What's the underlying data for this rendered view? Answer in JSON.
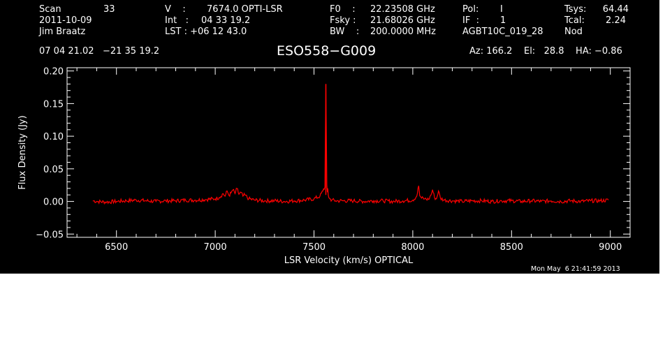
{
  "header": {
    "col1": [
      "Scan",
      "33",
      "2011-10-09",
      "Jim Braatz"
    ],
    "col2": [
      "V    :",
      "7674.0 OPTI-LSR",
      "Int   :",
      "04 33 19.2",
      "LST : +06 12 43.0"
    ],
    "col3": [
      "F0    :",
      "22.23508 GHz",
      "Fsky :",
      "21.68026 GHz",
      "BW    :",
      "200.0000 MHz"
    ],
    "col4": [
      "Pol:",
      "I",
      "IF  :",
      "1",
      "AGBT10C_019_28"
    ],
    "col5": [
      "Tsys:",
      "64.44",
      "Tcal:",
      "2.24",
      "Nod"
    ],
    "coords": "07 04 21.02   −21 35 19.2",
    "source": "ESO558−G009",
    "az_el_ha": "Az: 166.2    El:   28.8    HA: −0.86",
    "timestamp": "Mon May  6 21:41:59 2013"
  },
  "colors": {
    "background": "#000000",
    "axes": "#ffffff",
    "spectrum": "#ff0000"
  },
  "chart_data": {
    "type": "line",
    "title": "ESO558−G009",
    "xlabel": "LSR Velocity (km/s) OPTICAL",
    "ylabel": "Flux Density (Jy)",
    "xlim": [
      6250,
      9100
    ],
    "ylim": [
      -0.055,
      0.205
    ],
    "xticks": [
      6500,
      7000,
      7500,
      8000,
      8500,
      9000
    ],
    "xtick_labels": [
      "6500",
      "7000",
      "7500",
      "8000",
      "8500",
      "9000"
    ],
    "yticks": [
      -0.05,
      0.0,
      0.05,
      0.1,
      0.15,
      0.2
    ],
    "ytick_labels": [
      "−0.05",
      "0.00",
      "0.05",
      "0.10",
      "0.15",
      "0.20"
    ],
    "grid": false,
    "series": [
      {
        "x": [
          6380,
          6400,
          6450,
          6500,
          6550,
          6600,
          6650,
          6700,
          6750,
          6800,
          6850,
          6900,
          6950,
          7000,
          7020,
          7040,
          7050,
          7060,
          7070,
          7080,
          7090,
          7100,
          7110,
          7120,
          7130,
          7140,
          7150,
          7170,
          7200,
          7250,
          7300,
          7350,
          7400,
          7450,
          7500,
          7530,
          7545,
          7555,
          7560,
          7565,
          7568,
          7570,
          7572,
          7575,
          7580,
          7590,
          7610,
          7650,
          7700,
          7750,
          7800,
          7850,
          7900,
          7950,
          8000,
          8020,
          8030,
          8035,
          8045,
          8060,
          8080,
          8095,
          8100,
          8110,
          8120,
          8130,
          8140,
          8160,
          8200,
          8250,
          8300,
          8350,
          8400,
          8450,
          8500,
          8550,
          8600,
          8650,
          8700,
          8750,
          8800,
          8850,
          8900,
          8950,
          8990
        ],
        "y": [
          0.001,
          0.0,
          -0.001,
          0.0,
          0.001,
          0.002,
          0.001,
          0.0,
          0.001,
          0.001,
          0.002,
          0.002,
          0.003,
          0.004,
          0.006,
          0.012,
          0.008,
          0.016,
          0.009,
          0.013,
          0.018,
          0.012,
          0.02,
          0.011,
          0.014,
          0.008,
          0.01,
          0.004,
          0.002,
          0.001,
          0.001,
          0.0,
          0.001,
          0.002,
          0.004,
          0.008,
          0.016,
          0.022,
          0.18,
          0.025,
          0.014,
          0.02,
          0.01,
          0.006,
          0.004,
          0.002,
          0.001,
          0.001,
          0.001,
          0.0,
          0.001,
          0.001,
          0.0,
          0.001,
          0.002,
          0.008,
          0.024,
          0.009,
          0.005,
          0.004,
          0.003,
          0.012,
          0.018,
          0.006,
          0.004,
          0.016,
          0.005,
          0.002,
          0.001,
          0.0,
          0.001,
          0.001,
          0.0,
          0.001,
          0.001,
          0.0,
          0.001,
          0.0,
          0.001,
          0.0,
          0.001,
          0.0,
          0.001,
          0.001,
          0.002
        ]
      }
    ]
  }
}
